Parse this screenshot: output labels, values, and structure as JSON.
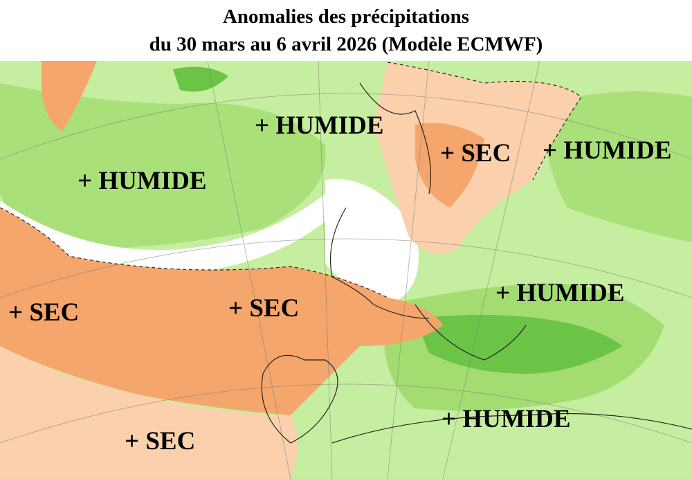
{
  "title": {
    "line1": "Anomalies des précipitations",
    "line2": "du 30 mars au 6 avril 2026 (Modèle ECMWF)"
  },
  "colors": {
    "base_green": "#c6eea0",
    "mid_green": "#a3dd72",
    "dark_green": "#6cc447",
    "orange": "#f5a66c",
    "peach": "#fbd0ad",
    "white": "#ffffff"
  },
  "labels": [
    {
      "id": "humide-atlantic-north",
      "text": "+ HUMIDE"
    },
    {
      "id": "humide-norway",
      "text": "+ HUMIDE"
    },
    {
      "id": "sec-baltic",
      "text": "+ SEC"
    },
    {
      "id": "humide-russia",
      "text": "+ HUMIDE"
    },
    {
      "id": "sec-west-atlantic",
      "text": "+ SEC"
    },
    {
      "id": "sec-biscay",
      "text": "+ SEC"
    },
    {
      "id": "humide-balkans",
      "text": "+ HUMIDE"
    },
    {
      "id": "sec-south-atlantic",
      "text": "+ SEC"
    },
    {
      "id": "humide-mediterranean",
      "text": "+ HUMIDE"
    }
  ]
}
